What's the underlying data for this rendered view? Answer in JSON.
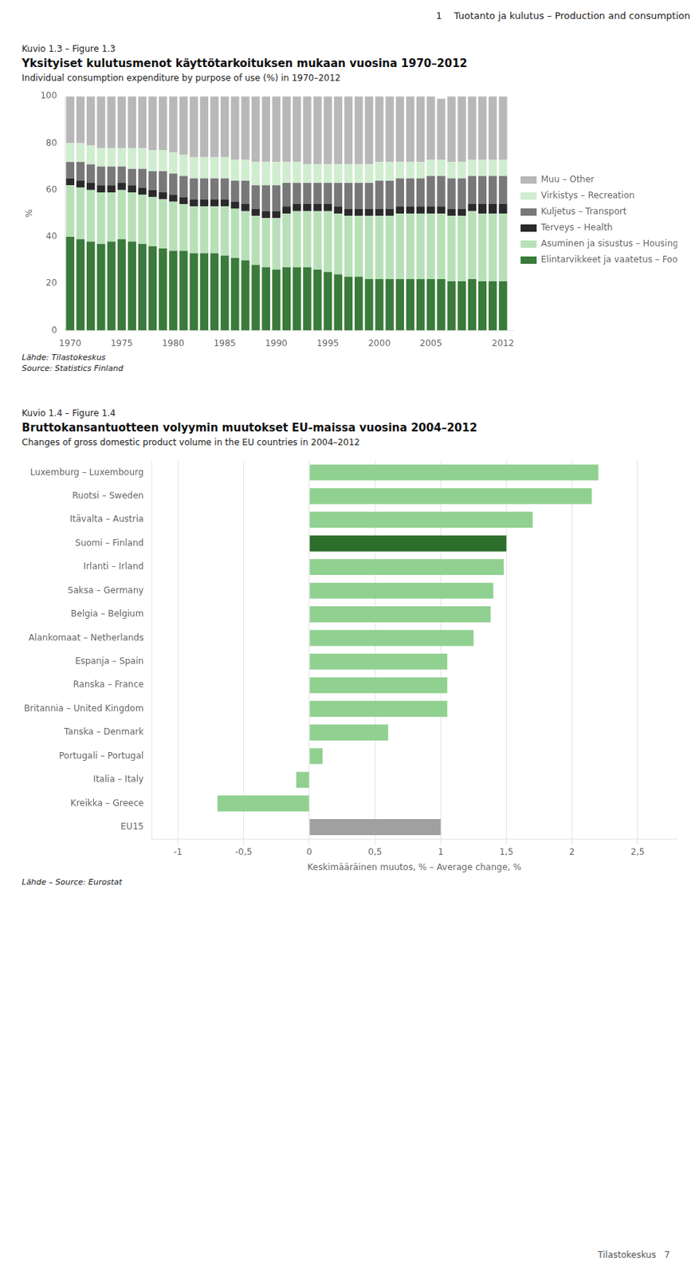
{
  "page_header": "1    Tuotanto ja kulutus – Production and consumption",
  "footer": "Tilastokeskus   7",
  "chart_data": [
    {
      "type": "bar",
      "label": "Kuvio 1.3 – Figure 1.3",
      "title": "Yksityiset kulutusmenot käyttötarkoituksen mukaan vuosina 1970–2012",
      "subtitle": "Individual consumption expenditure by purpose of use (%) in 1970–2012",
      "ylabel": "%",
      "stacked": true,
      "grid": false,
      "legend": "right",
      "x": [
        1970,
        1971,
        1972,
        1973,
        1974,
        1975,
        1976,
        1977,
        1978,
        1979,
        1980,
        1981,
        1982,
        1983,
        1984,
        1985,
        1986,
        1987,
        1988,
        1989,
        1990,
        1991,
        1992,
        1993,
        1994,
        1995,
        1996,
        1997,
        1998,
        1999,
        2000,
        2001,
        2002,
        2003,
        2004,
        2005,
        2006,
        2007,
        2008,
        2009,
        2010,
        2011,
        2012
      ],
      "xlim": [
        1969.5,
        2013.0
      ],
      "xticks": [
        1970,
        1975,
        1980,
        1985,
        1990,
        1995,
        2000,
        2005,
        2012
      ],
      "ylim": [
        0,
        100
      ],
      "yticks": [
        0,
        20,
        40,
        60,
        80,
        100
      ],
      "series": [
        {
          "name": "Elintarvikkeet ja vaatetus – Food and clothing",
          "color": "#3a7a3a",
          "values": [
            40,
            39,
            38,
            37,
            38,
            39,
            38,
            37,
            36,
            35,
            34,
            34,
            33,
            33,
            33,
            32,
            31,
            30,
            28,
            27,
            26,
            27,
            27,
            27,
            26,
            25,
            24,
            23,
            23,
            22,
            22,
            22,
            22,
            22,
            22,
            22,
            22,
            21,
            21,
            22,
            21,
            21,
            21
          ]
        },
        {
          "name": "Asuminen ja sisustus – Housing and furnishing",
          "color": "#b8e0b8",
          "values": [
            22,
            22,
            22,
            22,
            21,
            21,
            21,
            21,
            21,
            21,
            21,
            20,
            20,
            20,
            20,
            21,
            21,
            21,
            21,
            21,
            22,
            23,
            24,
            24,
            25,
            26,
            26,
            26,
            26,
            27,
            27,
            27,
            28,
            28,
            28,
            28,
            28,
            28,
            28,
            29,
            29,
            29,
            29
          ]
        },
        {
          "name": "Terveys – Health",
          "color": "#2a2a2a",
          "values": [
            3,
            3,
            3,
            3,
            3,
            3,
            3,
            3,
            3,
            3,
            3,
            3,
            3,
            3,
            3,
            3,
            3,
            3,
            3,
            3,
            3,
            3,
            3,
            3,
            3,
            3,
            3,
            3,
            3,
            3,
            3,
            3,
            3,
            3,
            3,
            3,
            3,
            3,
            3,
            3,
            4,
            4,
            4
          ]
        },
        {
          "name": "Kuljetus – Transport",
          "color": "#787878",
          "values": [
            7,
            8,
            8,
            8,
            8,
            7,
            7,
            8,
            8,
            9,
            9,
            9,
            9,
            9,
            9,
            9,
            9,
            10,
            10,
            11,
            11,
            10,
            9,
            9,
            9,
            9,
            10,
            11,
            11,
            11,
            12,
            12,
            12,
            12,
            12,
            13,
            13,
            13,
            13,
            12,
            12,
            12,
            12
          ]
        },
        {
          "name": "Virkistys – Recreation",
          "color": "#d0edd0",
          "values": [
            8,
            8,
            8,
            8,
            8,
            8,
            9,
            9,
            9,
            9,
            9,
            9,
            9,
            9,
            9,
            9,
            9,
            9,
            10,
            10,
            10,
            9,
            9,
            8,
            8,
            8,
            8,
            8,
            8,
            8,
            8,
            8,
            7,
            7,
            7,
            7,
            7,
            7,
            7,
            7,
            7,
            7,
            7
          ]
        },
        {
          "name": "Muu – Other",
          "color": "#b8b8b8",
          "values": [
            20,
            20,
            21,
            22,
            22,
            22,
            22,
            22,
            23,
            23,
            24,
            25,
            26,
            26,
            26,
            26,
            27,
            27,
            28,
            28,
            28,
            28,
            28,
            29,
            29,
            29,
            29,
            29,
            29,
            29,
            28,
            28,
            28,
            28,
            28,
            27,
            26,
            28,
            28,
            27,
            27,
            27,
            27
          ]
        }
      ],
      "source": [
        "Lähde: Tilastokeskus",
        "Source: Statistics Finland"
      ]
    },
    {
      "type": "bar",
      "orientation": "horizontal",
      "label": "Kuvio 1.4 – Figure 1.4",
      "title": "Bruttokansantuotteen volyymin muutokset EU-maissa vuosina 2004–2012",
      "subtitle": "Changes of gross domestic product volume in the EU countries in 2004–2012",
      "xlabel": "Keskimääräinen muutos, % – Average change, %",
      "grid": true,
      "categories": [
        "Luxemburg – Luxembourg",
        "Ruotsi – Sweden",
        "Itävalta – Austria",
        "Suomi – Finland",
        "Irlanti – Irland",
        "Saksa – Germany",
        "Belgia – Belgium",
        "Alankomaat – Netherlands",
        "Espanja – Spain",
        "Ranska – France",
        "Britannia – United Kingdom",
        "Tanska – Denmark",
        "Portugali – Portugal",
        "Italia – Italy",
        "Kreikka – Greece",
        "EU15"
      ],
      "values": [
        2.2,
        2.15,
        1.7,
        1.5,
        1.48,
        1.4,
        1.38,
        1.25,
        1.05,
        1.05,
        1.05,
        0.6,
        0.1,
        -0.1,
        -0.7,
        1.0
      ],
      "colors": [
        "#90d090",
        "#90d090",
        "#90d090",
        "#2d6e2d",
        "#90d090",
        "#90d090",
        "#90d090",
        "#90d090",
        "#90d090",
        "#90d090",
        "#90d090",
        "#90d090",
        "#90d090",
        "#90d090",
        "#90d090",
        "#a0a0a0"
      ],
      "xlim": [
        -1.2,
        2.8
      ],
      "xticks": [
        -1,
        {
          "value": -0.5,
          "label": "-0,5"
        },
        0,
        {
          "value": 0.5,
          "label": "0,5"
        },
        1,
        {
          "value": 1.5,
          "label": "1,5"
        },
        2,
        {
          "value": 2.5,
          "label": "2,5"
        }
      ],
      "source": [
        "Lähde – Source: Eurostat"
      ]
    }
  ]
}
